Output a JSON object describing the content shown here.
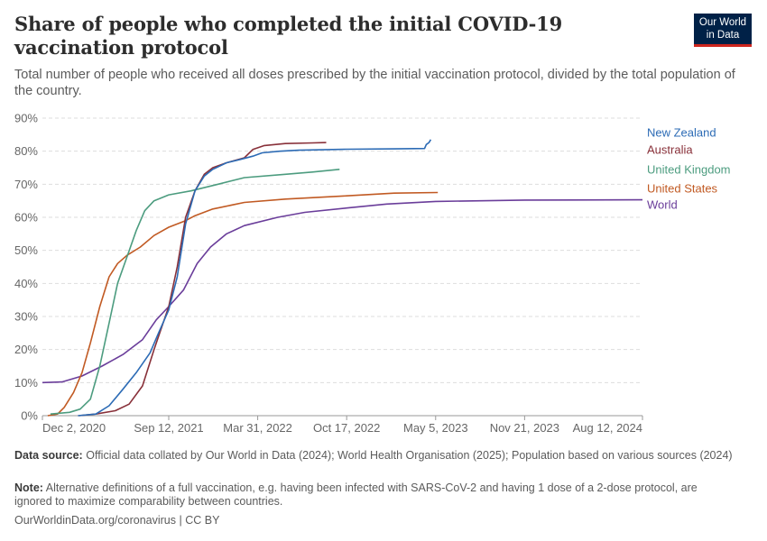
{
  "header": {
    "title": "Share of people who completed the initial COVID-19 vaccination protocol",
    "subtitle": "Total number of people who received all doses prescribed by the initial vaccination protocol, divided by the total population of the country."
  },
  "logo": {
    "line1": "Our World",
    "line2": "in Data",
    "bg_color": "#002147",
    "accent_color": "#ce261e"
  },
  "footer": {
    "source_label": "Data source:",
    "source_text": "Official data collated by Our World in Data (2024); World Health Organisation (2025); Population based on various sources (2024)",
    "note_label": "Note:",
    "note_text": "Alternative definitions of a full vaccination, e.g. having been infected with SARS-CoV-2 and having 1 dose of a 2-dose protocol, are ignored to maximize comparability between countries.",
    "url_text": "OurWorldinData.org/coronavirus | CC BY"
  },
  "chart_data": {
    "type": "line",
    "title": "Share of people who completed the initial COVID-19 vaccination protocol",
    "xlabel": "",
    "ylabel": "",
    "x_type": "date",
    "xlim": [
      "2020-12-02",
      "2024-08-12"
    ],
    "ylim": [
      0,
      90
    ],
    "y_ticks": [
      0,
      10,
      20,
      30,
      40,
      50,
      60,
      70,
      80,
      90
    ],
    "y_tick_labels": [
      "0%",
      "10%",
      "20%",
      "30%",
      "40%",
      "50%",
      "60%",
      "70%",
      "80%",
      "90%"
    ],
    "x_ticks": [
      "2020-12-02",
      "2021-09-12",
      "2022-03-31",
      "2022-10-17",
      "2023-05-05",
      "2023-11-21",
      "2024-08-12"
    ],
    "x_tick_labels": [
      "Dec 2, 2020",
      "Sep 12, 2021",
      "Mar 31, 2022",
      "Oct 17, 2022",
      "May 5, 2023",
      "Nov 21, 2023",
      "Aug 12, 2024"
    ],
    "grid": "horizontal dashed",
    "legend": "right, labels at line ends",
    "series": [
      {
        "name": "New Zealand",
        "color": "#2c6bb5",
        "points": [
          [
            "2021-02-20",
            0
          ],
          [
            "2021-04-01",
            0.5
          ],
          [
            "2021-05-01",
            3
          ],
          [
            "2021-06-01",
            8
          ],
          [
            "2021-07-01",
            13
          ],
          [
            "2021-08-01",
            19
          ],
          [
            "2021-08-20",
            25
          ],
          [
            "2021-09-12",
            32
          ],
          [
            "2021-10-01",
            42
          ],
          [
            "2021-10-20",
            58
          ],
          [
            "2021-11-10",
            68
          ],
          [
            "2021-12-01",
            72.5
          ],
          [
            "2021-12-20",
            74.5
          ],
          [
            "2022-01-20",
            76.5
          ],
          [
            "2022-02-20",
            77.5
          ],
          [
            "2022-03-20",
            78.5
          ],
          [
            "2022-04-10",
            79.5
          ],
          [
            "2022-05-20",
            80
          ],
          [
            "2022-07-01",
            80.3
          ],
          [
            "2022-10-17",
            80.6
          ],
          [
            "2023-02-01",
            80.7
          ],
          [
            "2023-04-10",
            80.8
          ],
          [
            "2023-04-14",
            82
          ],
          [
            "2023-04-20",
            82.6
          ],
          [
            "2023-04-24",
            83.5
          ]
        ]
      },
      {
        "name": "Australia",
        "color": "#883039",
        "points": [
          [
            "2021-02-22",
            0
          ],
          [
            "2021-04-01",
            0.5
          ],
          [
            "2021-05-15",
            1.5
          ],
          [
            "2021-06-15",
            3.5
          ],
          [
            "2021-07-15",
            9
          ],
          [
            "2021-08-10",
            20
          ],
          [
            "2021-09-12",
            33
          ],
          [
            "2021-10-01",
            45
          ],
          [
            "2021-10-20",
            60
          ],
          [
            "2021-11-10",
            68
          ],
          [
            "2021-12-01",
            73
          ],
          [
            "2021-12-20",
            75
          ],
          [
            "2022-01-20",
            76.5
          ],
          [
            "2022-03-01",
            78
          ],
          [
            "2022-03-20",
            80.5
          ],
          [
            "2022-04-15",
            81.7
          ],
          [
            "2022-06-01",
            82.3
          ],
          [
            "2022-08-01",
            82.5
          ],
          [
            "2022-09-01",
            82.6
          ]
        ]
      },
      {
        "name": "United Kingdom",
        "color": "#4c9c7f",
        "points": [
          [
            "2020-12-20",
            0.5
          ],
          [
            "2021-02-01",
            1
          ],
          [
            "2021-02-25",
            2
          ],
          [
            "2021-03-20",
            5
          ],
          [
            "2021-04-10",
            15
          ],
          [
            "2021-05-01",
            28
          ],
          [
            "2021-05-20",
            40
          ],
          [
            "2021-06-10",
            48
          ],
          [
            "2021-07-01",
            56
          ],
          [
            "2021-07-20",
            62
          ],
          [
            "2021-08-10",
            65
          ],
          [
            "2021-09-12",
            66.8
          ],
          [
            "2021-11-01",
            68
          ],
          [
            "2022-01-01",
            70
          ],
          [
            "2022-03-01",
            72
          ],
          [
            "2022-06-01",
            73
          ],
          [
            "2022-08-01",
            73.7
          ],
          [
            "2022-10-01",
            74.5
          ]
        ]
      },
      {
        "name": "United States",
        "color": "#c15a23",
        "points": [
          [
            "2020-12-14",
            0
          ],
          [
            "2021-01-05",
            0.5
          ],
          [
            "2021-01-20",
            2.5
          ],
          [
            "2021-02-10",
            7
          ],
          [
            "2021-03-01",
            13
          ],
          [
            "2021-03-20",
            22
          ],
          [
            "2021-04-10",
            33
          ],
          [
            "2021-05-01",
            42
          ],
          [
            "2021-05-20",
            46
          ],
          [
            "2021-06-10",
            48.5
          ],
          [
            "2021-07-10",
            51
          ],
          [
            "2021-08-10",
            54.5
          ],
          [
            "2021-09-12",
            57
          ],
          [
            "2021-10-20",
            59
          ],
          [
            "2021-11-10",
            60.5
          ],
          [
            "2021-12-20",
            62.5
          ],
          [
            "2022-03-01",
            64.5
          ],
          [
            "2022-06-01",
            65.5
          ],
          [
            "2022-10-17",
            66.5
          ],
          [
            "2023-02-01",
            67.3
          ],
          [
            "2023-05-10",
            67.5
          ]
        ]
      },
      {
        "name": "World",
        "color": "#6a3d9a",
        "points": [
          [
            "2020-12-02",
            10
          ],
          [
            "2021-01-15",
            10.2
          ],
          [
            "2021-03-01",
            12
          ],
          [
            "2021-04-15",
            15
          ],
          [
            "2021-06-01",
            18.5
          ],
          [
            "2021-07-15",
            23
          ],
          [
            "2021-08-15",
            29
          ],
          [
            "2021-09-12",
            33
          ],
          [
            "2021-10-15",
            38
          ],
          [
            "2021-11-15",
            46
          ],
          [
            "2021-12-15",
            51
          ],
          [
            "2022-01-20",
            55
          ],
          [
            "2022-03-01",
            57.5
          ],
          [
            "2022-05-15",
            60
          ],
          [
            "2022-07-15",
            61.5
          ],
          [
            "2022-10-17",
            62.8
          ],
          [
            "2023-01-15",
            64
          ],
          [
            "2023-05-05",
            64.8
          ],
          [
            "2023-11-21",
            65.2
          ],
          [
            "2024-08-12",
            65.3
          ]
        ]
      }
    ]
  }
}
